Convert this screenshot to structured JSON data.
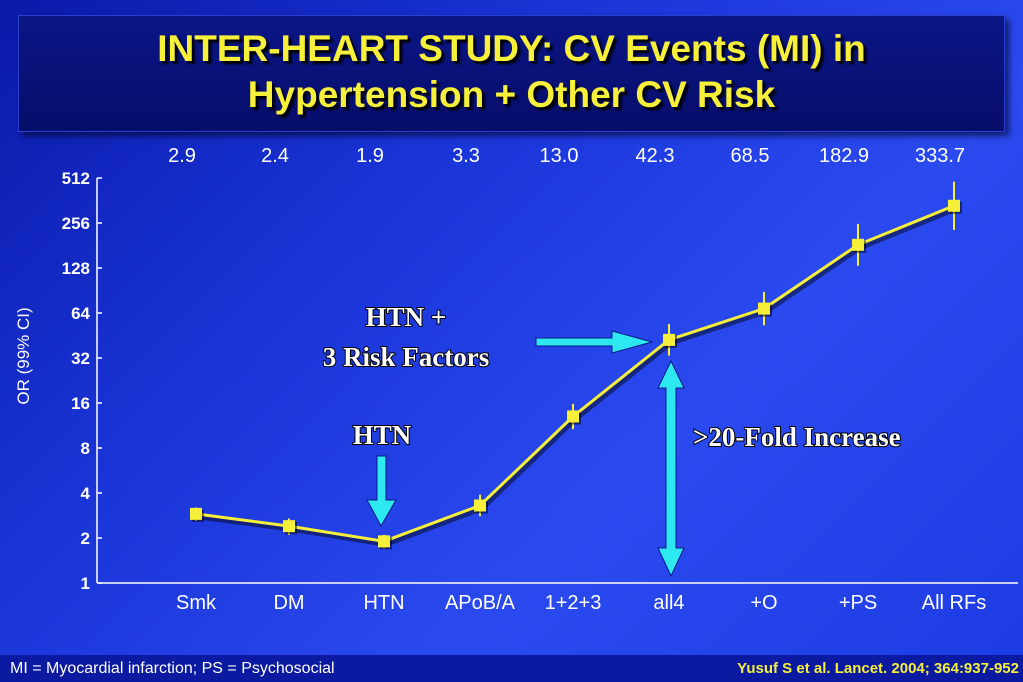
{
  "title": {
    "line1": "INTER-HEART STUDY: CV Events (MI) in",
    "line2": "Hypertension + Other CV Risk"
  },
  "chart_data": {
    "type": "line",
    "ylabel": "OR (99% CI)",
    "y_scale": "log2",
    "ylim": [
      1,
      512
    ],
    "y_ticks": [
      "512",
      "256",
      "128",
      "64",
      "32",
      "16",
      "8",
      "4",
      "2",
      "1"
    ],
    "categories": [
      "Smk",
      "DM",
      "HTN",
      "APoB/A",
      "1+2+3",
      "all4",
      "+O",
      "+PS",
      "All RFs"
    ],
    "values": [
      2.9,
      2.4,
      1.9,
      3.3,
      13.0,
      42.3,
      68.5,
      182.9,
      333.7
    ],
    "value_labels": [
      "2.9",
      "2.4",
      "1.9",
      "3.3",
      "13.0",
      "42.3",
      "68.5",
      "182.9",
      "333.7"
    ],
    "ci": [
      [
        2.6,
        3.2
      ],
      [
        2.1,
        2.7
      ],
      [
        1.7,
        2.1
      ],
      [
        2.8,
        3.9
      ],
      [
        10.7,
        15.8
      ],
      [
        33.2,
        54.0
      ],
      [
        53.0,
        88.6
      ],
      [
        132.6,
        252.3
      ],
      [
        230.2,
        483.9
      ]
    ],
    "line_color": "#f6f03a",
    "marker_color": "#f6f03a",
    "annotations": {
      "htn3_line1": "HTN +",
      "htn3_line2": "3 Risk Factors",
      "htn": "HTN",
      "fold": ">20-Fold Increase"
    },
    "arrow_color": "#2ee8f0"
  },
  "footer": {
    "left": "MI = Myocardial infarction; PS = Psychosocial",
    "right": "Yusuf S et al. Lancet. 2004; 364:937-952"
  }
}
